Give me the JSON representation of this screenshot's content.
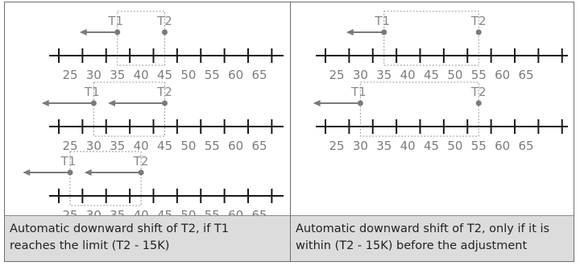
{
  "panels": [
    {
      "caption_line1": "Automatic downward shift of T2, if T1",
      "caption_line2": "reaches the limit (T2 - 15K)",
      "rows": [
        {
          "t1_label": "T1",
          "t2_label": "T2",
          "t1": 35,
          "t2": 45,
          "arrow_to": 27
        },
        {
          "t1_label": "T1",
          "t2_label": "T2",
          "t1": 30,
          "t2": 45,
          "arrow_to": 19,
          "t2_arrow_to": 33
        },
        {
          "t1_label": "T1",
          "t2_label": "T2",
          "t1": 25,
          "t2": 40,
          "arrow_to": 15,
          "t2_arrow_to": 28
        }
      ]
    },
    {
      "caption_line1": "Automatic downward shift of T2, only if it is",
      "caption_line2": "within (T2 - 15K) before the adjustment",
      "rows": [
        {
          "t1_label": "T1",
          "t2_label": "T2",
          "t1": 35,
          "t2": 55,
          "arrow_to": 27
        },
        {
          "t1_label": "T1",
          "t2_label": "T2",
          "t1": 30,
          "t2": 55,
          "arrow_to": 20
        }
      ]
    }
  ],
  "scale_labels": [
    "25",
    "30",
    "35",
    "40",
    "45",
    "50",
    "55",
    "60",
    "65"
  ],
  "colors": {
    "line": "#1a1a1a",
    "marker": "#7a7a7a",
    "box": "#9a9a9a"
  }
}
